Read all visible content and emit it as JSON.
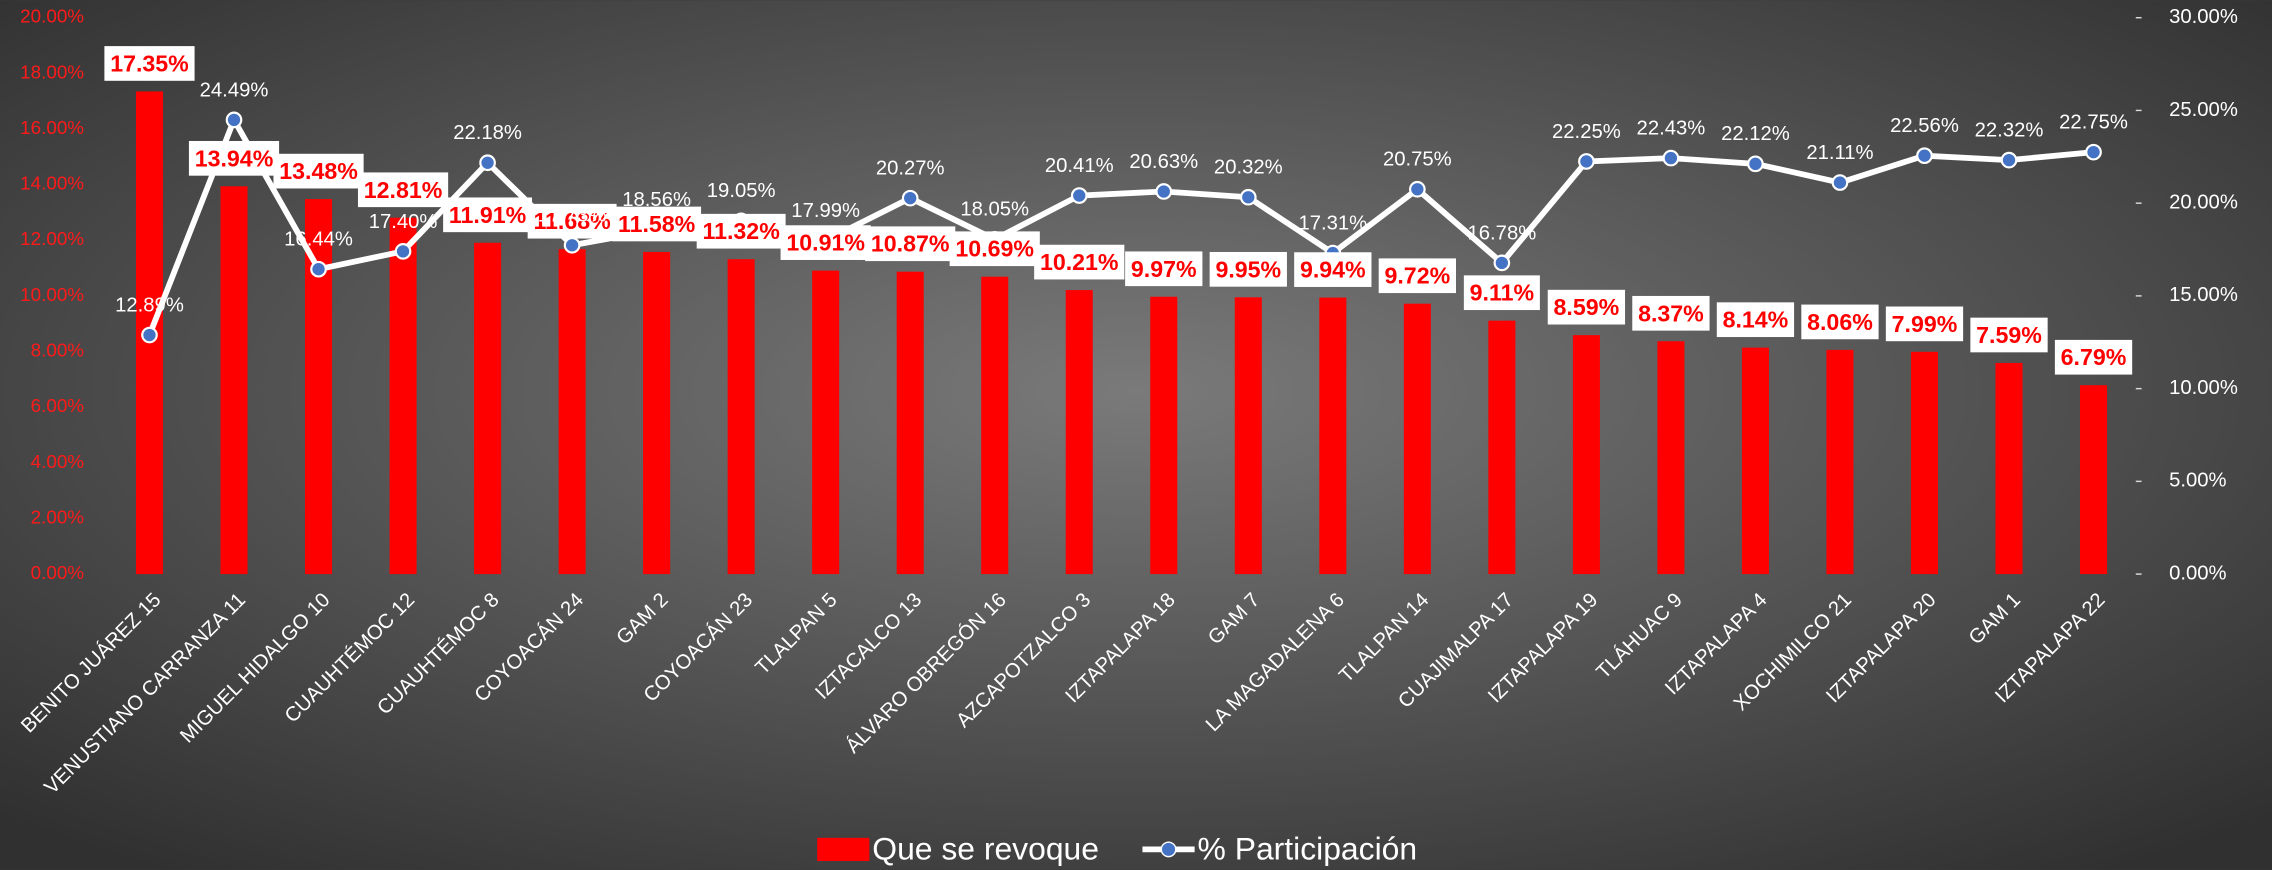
{
  "chart_data": {
    "type": "bar",
    "categories": [
      "BENITO JUÁREZ 15",
      "VENUSTIANO CARRANZA 11",
      "MIGUEL HIDALGO 10",
      "CUAUHTÉMOC 12",
      "CUAUHTÉMOC 8",
      "COYOACÁN 24",
      "GAM 2",
      "COYOACÁN 23",
      "TLALPAN 5",
      "IZTACALCO 13",
      "ÁLVARO OBREGÓN 16",
      "AZCAPOTZALCO 3",
      "IZTAPALAPA 18",
      "GAM 7",
      "LA MAGADALENA 6",
      "TLALPAN 14",
      "CUAJIMALPA 17",
      "IZTAPALAPA 19",
      "TLÁHUAC 9",
      "IZTAPALAPA 4",
      "XOCHIMILCO 21",
      "IZTAPALAPA 20",
      "GAM 1",
      "IZTAPALAPA 22"
    ],
    "series": [
      {
        "name": "Que se revoque",
        "type": "bar",
        "color": "#ff0000",
        "values": [
          17.35,
          13.94,
          13.48,
          12.81,
          11.91,
          11.68,
          11.58,
          11.32,
          10.91,
          10.87,
          10.69,
          10.21,
          9.97,
          9.95,
          9.94,
          9.72,
          9.11,
          8.59,
          8.37,
          8.14,
          8.06,
          7.99,
          7.59,
          6.79
        ],
        "value_labels": [
          "17.35%",
          "13.94%",
          "13.48%",
          "12.81%",
          "11.91%",
          "11.68%",
          "11.58%",
          "11.32%",
          "10.91%",
          "10.87%",
          "10.69%",
          "10.21%",
          "9.97%",
          "9.95%",
          "9.94%",
          "9.72%",
          "9.11%",
          "8.59%",
          "8.37%",
          "8.14%",
          "8.06%",
          "7.99%",
          "7.59%",
          "6.79%"
        ]
      },
      {
        "name": "% Participación",
        "type": "line",
        "axis": "y2",
        "color": "#ffffff",
        "values": [
          12.89,
          24.49,
          16.44,
          17.4,
          22.18,
          17.73,
          18.56,
          19.05,
          17.99,
          20.27,
          18.05,
          20.41,
          20.63,
          20.32,
          17.31,
          20.75,
          16.78,
          22.25,
          22.43,
          22.12,
          21.11,
          22.56,
          22.32,
          22.75
        ],
        "value_labels": [
          "12.89%",
          "24.49%",
          "16.44%",
          "17.40%",
          "22.18%",
          "17.73%",
          "18.56%",
          "19.05%",
          "17.99%",
          "20.27%",
          "18.05%",
          "20.41%",
          "20.63%",
          "20.32%",
          "17.31%",
          "20.75%",
          "16.78%",
          "22.25%",
          "22.43%",
          "22.12%",
          "21.11%",
          "22.56%",
          "22.32%",
          "22.75%"
        ]
      }
    ],
    "ylim": [
      0,
      20
    ],
    "yticks": [
      {
        "value": 0,
        "label": "0.00%"
      },
      {
        "value": 2,
        "label": "2.00%"
      },
      {
        "value": 4,
        "label": "4.00%"
      },
      {
        "value": 6,
        "label": "6.00%"
      },
      {
        "value": 8,
        "label": "8.00%"
      },
      {
        "value": 10,
        "label": "10.00%"
      },
      {
        "value": 12,
        "label": "12.00%"
      },
      {
        "value": 14,
        "label": "14.00%"
      },
      {
        "value": 16,
        "label": "16.00%"
      },
      {
        "value": 18,
        "label": "18.00%"
      },
      {
        "value": 20,
        "label": "20.00%"
      }
    ],
    "y2lim": [
      0,
      30
    ],
    "y2ticks": [
      {
        "value": 0,
        "label": "0.00%"
      },
      {
        "value": 5,
        "label": "5.00%"
      },
      {
        "value": 10,
        "label": "10.00%"
      },
      {
        "value": 15,
        "label": "15.00%"
      },
      {
        "value": 20,
        "label": "20.00%"
      },
      {
        "value": 25,
        "label": "25.00%"
      },
      {
        "value": 30,
        "label": "30.00%"
      }
    ],
    "grid": true,
    "legend": "bottom"
  }
}
